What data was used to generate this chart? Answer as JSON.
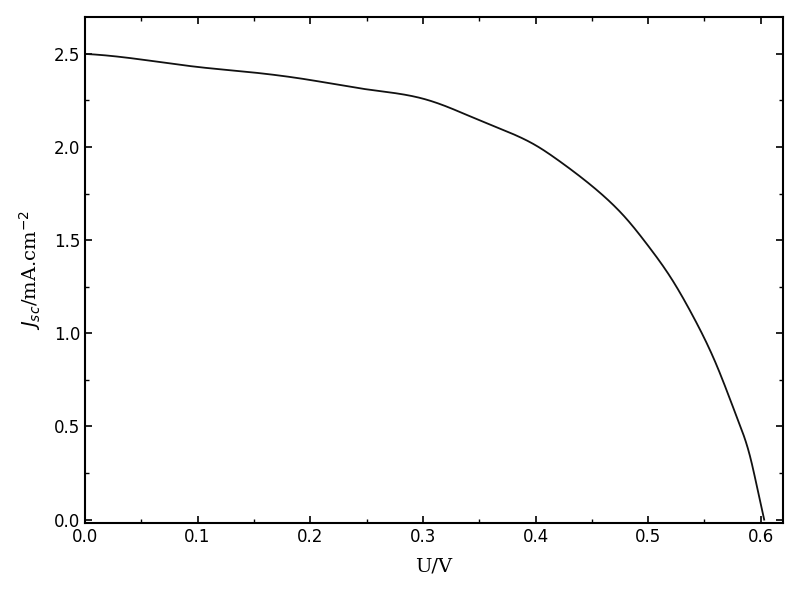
{
  "title": "",
  "xlabel": "U/V",
  "ylabel": "J_sc/mA.cm^{-2}",
  "xlim": [
    0.0,
    0.62
  ],
  "ylim": [
    -0.02,
    2.7
  ],
  "xticks": [
    0.0,
    0.1,
    0.2,
    0.3,
    0.4,
    0.5,
    0.6
  ],
  "yticks": [
    0.0,
    0.5,
    1.0,
    1.5,
    2.0,
    2.5
  ],
  "line_color": "#111111",
  "line_width": 1.3,
  "background_color": "#ffffff",
  "Jsc": 2.5,
  "Voc": 0.603,
  "n_diode": 1.8,
  "Rs": 55.0,
  "Rsh": 120.0,
  "figsize": [
    8.0,
    5.92
  ],
  "dpi": 100
}
